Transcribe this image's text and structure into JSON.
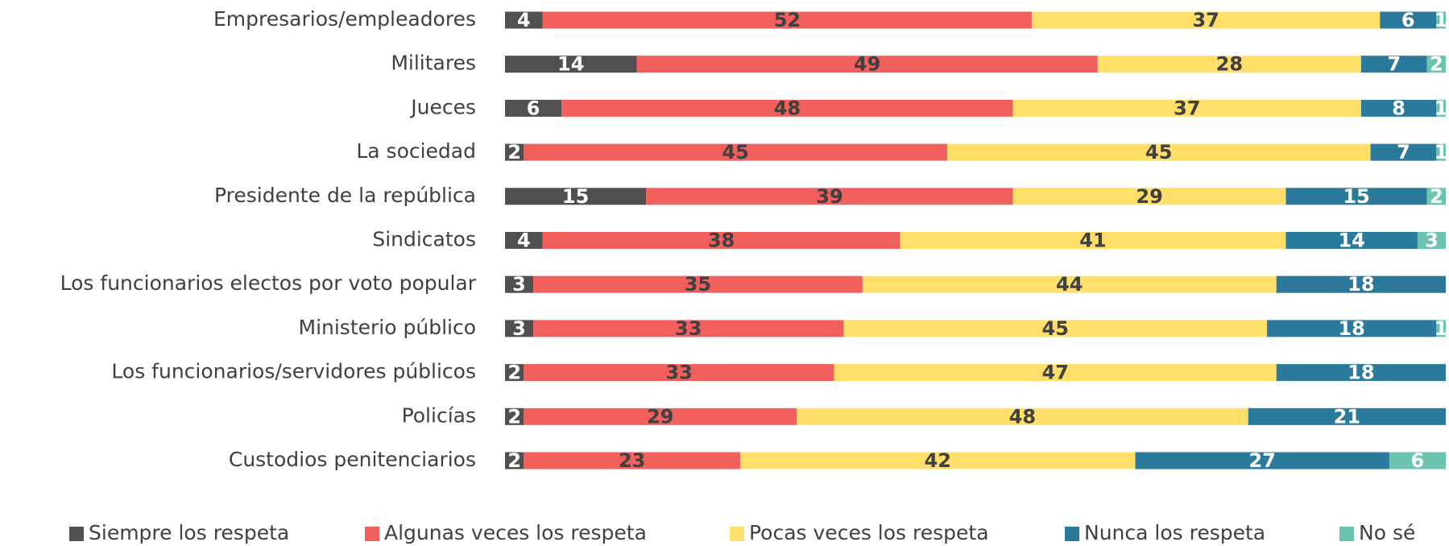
{
  "chart_data": {
    "type": "stacked_barh",
    "categories": [
      "Empresarios/empleadores",
      "Militares",
      "Jueces",
      "La sociedad",
      "Presidente de la república",
      "Sindicatos",
      "Los funcionarios electos por voto popular",
      "Ministerio público",
      "Los funcionarios/servidores públicos",
      "Policías",
      "Custodios penitenciarios"
    ],
    "series": [
      {
        "name": "Siempre los respeta",
        "color": "#505050",
        "values": [
          4,
          14,
          6,
          2,
          15,
          4,
          3,
          3,
          2,
          2,
          2
        ]
      },
      {
        "name": "Algunas veces los respeta",
        "color": "#f2605e",
        "values": [
          52,
          49,
          48,
          45,
          39,
          38,
          35,
          33,
          33,
          29,
          23
        ]
      },
      {
        "name": "Pocas veces los respeta",
        "color": "#ffdf6a",
        "values": [
          37,
          28,
          37,
          45,
          29,
          41,
          44,
          45,
          47,
          48,
          42
        ]
      },
      {
        "name": "Nunca los respeta",
        "color": "#2b7a9c",
        "values": [
          6,
          7,
          8,
          7,
          15,
          14,
          18,
          18,
          18,
          21,
          27
        ]
      },
      {
        "name": "No sé",
        "color": "#6cc3b0",
        "values": [
          1,
          2,
          1,
          1,
          2,
          3,
          null,
          1,
          null,
          null,
          6
        ]
      }
    ],
    "xlim": [
      0,
      100
    ],
    "legend": "bottom"
  }
}
